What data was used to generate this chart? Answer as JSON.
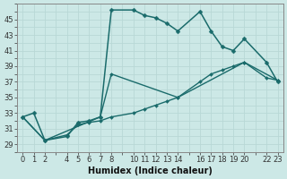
{
  "xlabel": "Humidex (Indice chaleur)",
  "bg_color": "#cce8e6",
  "line_color": "#1a6b6b",
  "grid_color": "#b8d8d6",
  "xlim": [
    -0.5,
    23.5
  ],
  "ylim": [
    28,
    47
  ],
  "xtick_shown": [
    0,
    1,
    2,
    4,
    5,
    6,
    7,
    8,
    10,
    11,
    12,
    13,
    14,
    16,
    17,
    18,
    19,
    20,
    22,
    23
  ],
  "ytick_shown": [
    29,
    31,
    33,
    35,
    37,
    39,
    41,
    43,
    45
  ],
  "series1": {
    "x": [
      0,
      1,
      2,
      4,
      5,
      6,
      7,
      8,
      10,
      11,
      12,
      13,
      14,
      16,
      17,
      18,
      19,
      20,
      22,
      23
    ],
    "y": [
      32.5,
      33,
      29.5,
      30.0,
      31.8,
      32.0,
      32.5,
      46.2,
      46.2,
      45.5,
      45.2,
      44.5,
      43.5,
      46.0,
      43.5,
      41.5,
      41.0,
      42.5,
      39.5,
      37.0
    ]
  },
  "series2": {
    "x": [
      0,
      2,
      4,
      5,
      6,
      7,
      8,
      10,
      11,
      12,
      13,
      14,
      16,
      17,
      18,
      19,
      20,
      22,
      23
    ],
    "y": [
      32.5,
      29.5,
      30.2,
      31.5,
      31.8,
      32.0,
      32.5,
      33.0,
      33.5,
      34.0,
      34.5,
      35.0,
      37.0,
      38.0,
      38.5,
      39.0,
      39.5,
      37.5,
      37.2
    ]
  },
  "series3": {
    "x": [
      0,
      2,
      7,
      8,
      14,
      20,
      23
    ],
    "y": [
      32.5,
      29.5,
      32.5,
      38.0,
      35.0,
      39.5,
      37.2
    ]
  },
  "markersize": 2.5,
  "linewidth": 1.1,
  "tick_fontsize": 6.0,
  "xlabel_fontsize": 7.0
}
